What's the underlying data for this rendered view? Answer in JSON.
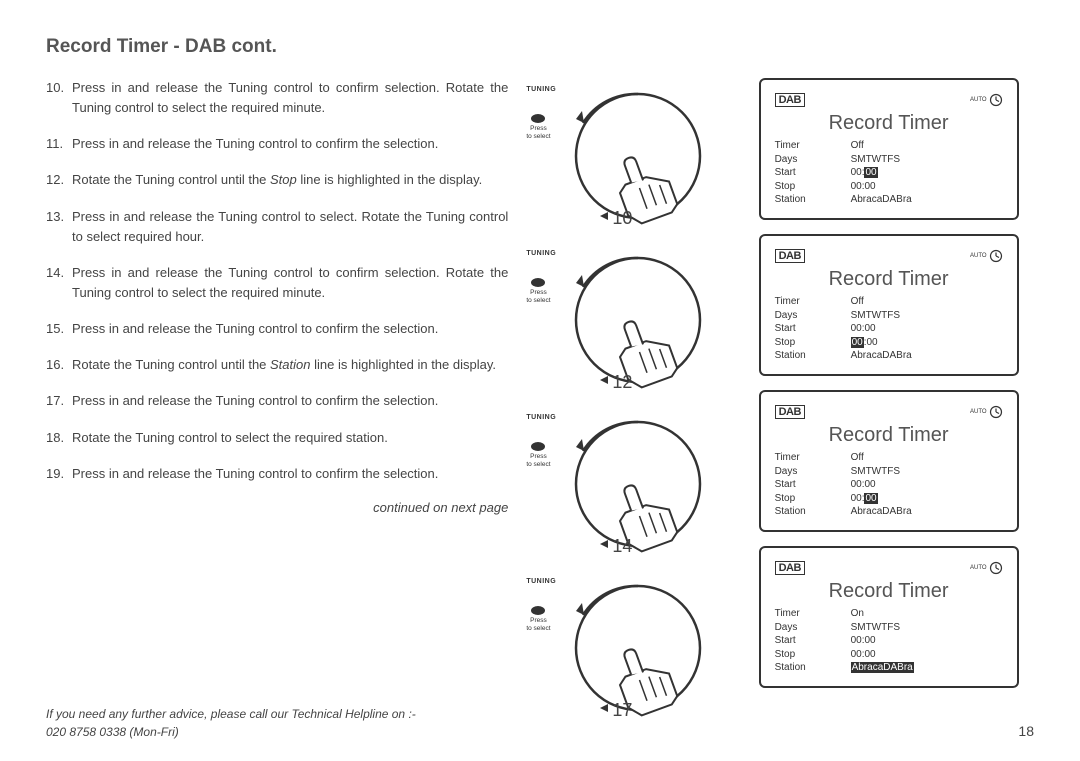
{
  "heading": "Record Timer - DAB cont.",
  "steps": [
    {
      "n": "10.",
      "body": "Press in and release the Tuning control  to confirm selection. Rotate the Tuning control  to select the required minute."
    },
    {
      "n": "11.",
      "body": "Press in and release the Tuning control  to confirm the selection."
    },
    {
      "n": "12.",
      "body": "Rotate the Tuning control  until the <i>Stop</i> line is highlighted in the display."
    },
    {
      "n": "13.",
      "body": "Press in and release the Tuning control  to select. Rotate the Tuning control  to select required hour."
    },
    {
      "n": "14.",
      "body": "Press in and release the Tuning control  to confirm selection. Rotate the Tuning control  to select the required minute."
    },
    {
      "n": "15.",
      "body": "Press in and release the Tuning control  to confirm the selection."
    },
    {
      "n": "16.",
      "body": "Rotate the Tuning control  until the <i>Station</i> line is highlighted in the display."
    },
    {
      "n": "17.",
      "body": "Press in and release the Tuning control  to confirm the selection."
    },
    {
      "n": "18.",
      "body": "Rotate the Tuning control  to select the required station."
    },
    {
      "n": "19.",
      "body": "Press in and release the Tuning control  to confirm the selection."
    }
  ],
  "continued": "continued on next page",
  "helpline1": "If you need any further advice, please call our Technical Helpline on :-",
  "helpline2": "020 8758 0338 (Mon-Fri)",
  "pageNumber": "18",
  "dials": [
    {
      "num": "10",
      "tuning": "TUNING",
      "press": "Press",
      "select": "to select"
    },
    {
      "num": "12",
      "tuning": "TUNING",
      "press": "Press",
      "select": "to select"
    },
    {
      "num": "14",
      "tuning": "TUNING",
      "press": "Press",
      "select": "to select"
    },
    {
      "num": "17",
      "tuning": "TUNING",
      "press": "Press",
      "select": "to select"
    }
  ],
  "displays": [
    {
      "title": "Record Timer",
      "logo": "DAB",
      "auto": "AUTO",
      "rows": [
        {
          "lbl": "Timer",
          "val": "Off",
          "hl": ""
        },
        {
          "lbl": "Days",
          "val": "SMTWTFS",
          "hl": ""
        },
        {
          "lbl": "Start",
          "pre": "00:",
          "hlpart": "00",
          "post": ""
        },
        {
          "lbl": "Stop",
          "val": "00:00",
          "hl": ""
        },
        {
          "lbl": "Station",
          "val": "AbracaDABra",
          "hl": ""
        }
      ]
    },
    {
      "title": "Record Timer",
      "logo": "DAB",
      "auto": "AUTO",
      "rows": [
        {
          "lbl": "Timer",
          "val": "Off",
          "hl": ""
        },
        {
          "lbl": "Days",
          "val": "SMTWTFS",
          "hl": ""
        },
        {
          "lbl": "Start",
          "val": "00:00",
          "hl": ""
        },
        {
          "lbl": "Stop",
          "pre": "",
          "hlpart": "00",
          "post": ":00"
        },
        {
          "lbl": "Station",
          "val": "AbracaDABra",
          "hl": ""
        }
      ]
    },
    {
      "title": "Record Timer",
      "logo": "DAB",
      "auto": "AUTO",
      "rows": [
        {
          "lbl": "Timer",
          "val": "Off",
          "hl": ""
        },
        {
          "lbl": "Days",
          "val": "SMTWTFS",
          "hl": ""
        },
        {
          "lbl": "Start",
          "val": "00:00",
          "hl": ""
        },
        {
          "lbl": "Stop",
          "pre": "00:",
          "hlpart": "00",
          "post": ""
        },
        {
          "lbl": "Station",
          "val": "AbracaDABra",
          "hl": ""
        }
      ]
    },
    {
      "title": "Record Timer",
      "logo": "DAB",
      "auto": "AUTO",
      "rows": [
        {
          "lbl": "Timer",
          "val": "On",
          "hl": ""
        },
        {
          "lbl": "Days",
          "val": "SMTWTFS",
          "hl": ""
        },
        {
          "lbl": "Start",
          "val": "00:00",
          "hl": ""
        },
        {
          "lbl": "Stop",
          "val": "00:00",
          "hl": ""
        },
        {
          "lbl": "Station",
          "pre": "",
          "hlpart": "AbracaDABra",
          "post": ""
        }
      ]
    }
  ],
  "colors": {
    "text": "#444444",
    "border": "#333333",
    "heading": "#555555",
    "background": "#ffffff",
    "highlight_bg": "#333333",
    "highlight_fg": "#ffffff"
  }
}
